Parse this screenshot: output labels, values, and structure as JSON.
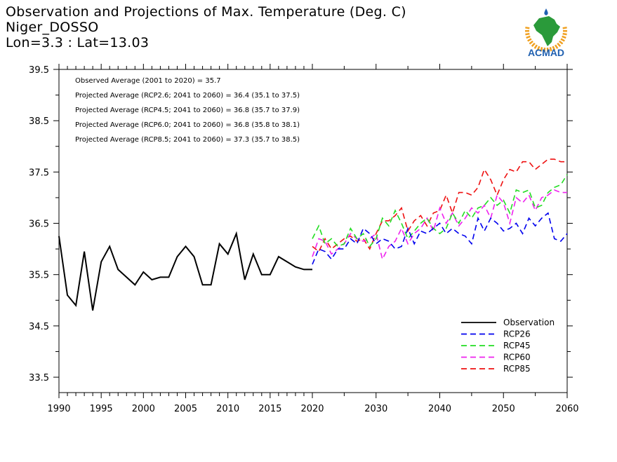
{
  "header": {
    "title": "Observation and Projections of Max. Temperature (Deg. C)",
    "location": "Niger_DOSSO",
    "coords": "Lon=3.3 : Lat=13.03"
  },
  "logo": {
    "text": "ACMAD",
    "icon": "africa-map-logo-icon"
  },
  "colors": {
    "observation": "#000000",
    "RCP26": "#0000ee",
    "RCP45": "#22dd22",
    "RCP60": "#ee22ee",
    "RCP85": "#ee1111",
    "logo_green": "#2a9a3a",
    "logo_blue": "#2060b0",
    "logo_orange": "#f0a020"
  },
  "chart_data": {
    "type": "line",
    "ylim": [
      33.2,
      39.5
    ],
    "yticks": [
      33.5,
      34.5,
      35.5,
      36.5,
      37.5,
      38.5,
      39.5
    ],
    "ytick_labels": [
      "33.5",
      "34.5",
      "35.5",
      "36.5",
      "37.5",
      "38.5",
      "39.5"
    ],
    "xlim_obs": [
      1990,
      2020
    ],
    "xlim_proj": [
      2020,
      2060
    ],
    "xticks_obs": [
      1990,
      1995,
      2000,
      2005,
      2010,
      2015,
      2020
    ],
    "xticks_proj": [
      2030,
      2040,
      2050,
      2060
    ],
    "xtick_labels_obs": [
      "1990",
      "1995",
      "2000",
      "2005",
      "2010",
      "2015",
      "2020"
    ],
    "xtick_labels_proj": [
      "2030",
      "2040",
      "2050",
      "2060"
    ],
    "annotations": [
      "Observed Average (2001 to 2020) = 35.7",
      "Projected Average (RCP2.6; 2041 to 2060) = 36.4 (35.1 to 37.5)",
      "Projected Average (RCP4.5; 2041 to 2060) = 36.8 (35.7 to 37.9)",
      "Projected Average (RCP6.0; 2041 to 2060) = 36.8 (35.8 to 38.1)",
      "Projected Average (RCP8.5; 2041 to 2060) = 37.3 (35.7 to 38.5)"
    ],
    "legend": [
      "Observation",
      "RCP26",
      "RCP45",
      "RCP60",
      "RCP85"
    ],
    "legend_position": "bottom-right",
    "series": [
      {
        "name": "Observation",
        "style": "solid",
        "x": [
          1990,
          1991,
          1992,
          1993,
          1994,
          1995,
          1996,
          1997,
          1998,
          1999,
          2000,
          2001,
          2002,
          2003,
          2004,
          2005,
          2006,
          2007,
          2008,
          2009,
          2010,
          2011,
          2012,
          2013,
          2014,
          2015,
          2016,
          2017,
          2018,
          2019,
          2020
        ],
        "values": [
          36.25,
          35.1,
          34.9,
          35.95,
          34.8,
          35.75,
          36.05,
          35.6,
          35.45,
          35.3,
          35.55,
          35.4,
          35.45,
          35.45,
          35.85,
          36.05,
          35.85,
          35.3,
          35.3,
          36.1,
          35.9,
          36.3,
          35.4,
          35.9,
          35.5,
          35.5,
          35.85,
          35.75,
          35.65,
          35.6,
          35.6
        ]
      },
      {
        "name": "RCP26",
        "style": "dashed",
        "x": [
          2020,
          2021,
          2022,
          2023,
          2024,
          2025,
          2026,
          2027,
          2028,
          2029,
          2030,
          2031,
          2032,
          2033,
          2034,
          2035,
          2036,
          2037,
          2038,
          2039,
          2040,
          2041,
          2042,
          2043,
          2044,
          2045,
          2046,
          2047,
          2048,
          2049,
          2050,
          2051,
          2052,
          2053,
          2054,
          2055,
          2056,
          2057,
          2058,
          2059,
          2060
        ],
        "values": [
          35.7,
          36.0,
          35.95,
          35.8,
          36.0,
          36.0,
          36.2,
          36.1,
          36.4,
          36.3,
          36.1,
          36.2,
          36.15,
          36.0,
          36.05,
          36.4,
          36.1,
          36.35,
          36.3,
          36.4,
          36.5,
          36.3,
          36.4,
          36.3,
          36.25,
          36.1,
          36.6,
          36.35,
          36.6,
          36.5,
          36.35,
          36.4,
          36.5,
          36.3,
          36.6,
          36.45,
          36.6,
          36.7,
          36.2,
          36.15,
          36.3
        ]
      },
      {
        "name": "RCP45",
        "style": "dashed",
        "x": [
          2020,
          2021,
          2022,
          2023,
          2024,
          2025,
          2026,
          2027,
          2028,
          2029,
          2030,
          2031,
          2032,
          2033,
          2034,
          2035,
          2036,
          2037,
          2038,
          2039,
          2040,
          2041,
          2042,
          2043,
          2044,
          2045,
          2046,
          2047,
          2048,
          2049,
          2050,
          2051,
          2052,
          2053,
          2054,
          2055,
          2056,
          2057,
          2058,
          2059,
          2060
        ],
        "values": [
          36.2,
          36.45,
          36.1,
          36.2,
          36.05,
          36.1,
          36.4,
          36.2,
          36.3,
          36.05,
          36.2,
          36.6,
          36.45,
          36.75,
          36.5,
          36.2,
          36.35,
          36.5,
          36.6,
          36.4,
          36.3,
          36.4,
          36.7,
          36.5,
          36.75,
          36.6,
          36.8,
          36.85,
          37.0,
          36.85,
          36.95,
          36.7,
          37.15,
          37.1,
          37.15,
          36.8,
          36.85,
          37.1,
          37.2,
          37.25,
          37.45
        ]
      },
      {
        "name": "RCP60",
        "style": "dashed",
        "x": [
          2020,
          2021,
          2022,
          2023,
          2024,
          2025,
          2026,
          2027,
          2028,
          2029,
          2030,
          2031,
          2032,
          2033,
          2034,
          2035,
          2036,
          2037,
          2038,
          2039,
          2040,
          2041,
          2042,
          2043,
          2044,
          2045,
          2046,
          2047,
          2048,
          2049,
          2050,
          2051,
          2052,
          2053,
          2054,
          2055,
          2056,
          2057,
          2058,
          2059,
          2060
        ],
        "values": [
          35.85,
          36.2,
          36.15,
          35.9,
          36.0,
          36.1,
          36.3,
          36.2,
          36.15,
          36.2,
          36.3,
          35.8,
          36.05,
          36.15,
          36.4,
          36.1,
          36.3,
          36.4,
          36.6,
          36.35,
          36.8,
          36.5,
          36.7,
          36.45,
          36.6,
          36.8,
          36.7,
          36.85,
          36.6,
          37.05,
          36.9,
          36.5,
          37.0,
          36.9,
          37.05,
          36.75,
          37.0,
          37.05,
          37.15,
          37.1,
          37.1
        ]
      },
      {
        "name": "RCP85",
        "style": "dashed",
        "x": [
          2020,
          2021,
          2022,
          2023,
          2024,
          2025,
          2026,
          2027,
          2028,
          2029,
          2030,
          2031,
          2032,
          2033,
          2034,
          2035,
          2036,
          2037,
          2038,
          2039,
          2040,
          2041,
          2042,
          2043,
          2044,
          2045,
          2046,
          2047,
          2048,
          2049,
          2050,
          2051,
          2052,
          2053,
          2054,
          2055,
          2056,
          2057,
          2058,
          2059,
          2060
        ],
        "values": [
          36.05,
          35.95,
          36.2,
          36.0,
          36.1,
          36.2,
          36.25,
          36.15,
          36.2,
          36.0,
          36.3,
          36.55,
          36.55,
          36.65,
          36.8,
          36.35,
          36.55,
          36.65,
          36.45,
          36.7,
          36.75,
          37.05,
          36.7,
          37.1,
          37.1,
          37.05,
          37.2,
          37.55,
          37.35,
          37.05,
          37.35,
          37.55,
          37.5,
          37.7,
          37.7,
          37.55,
          37.65,
          37.75,
          37.75,
          37.7,
          37.7
        ]
      }
    ]
  }
}
